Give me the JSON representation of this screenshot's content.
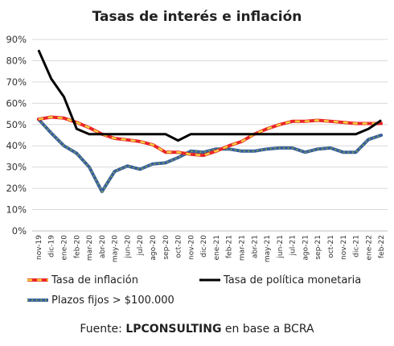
{
  "chart_data": {
    "type": "line",
    "title": "Tasas de interés e inflación",
    "categories": [
      "nov-19",
      "dic-19",
      "ene-20",
      "feb-20",
      "mar-20",
      "abr-20",
      "may-20",
      "jun-20",
      "jul-20",
      "ago-20",
      "sep-20",
      "oct-20",
      "nov-20",
      "dic-20",
      "ene-21",
      "feb-21",
      "mar-21",
      "abr-21",
      "may-21",
      "jun-21",
      "jul-21",
      "ago-21",
      "sep-21",
      "oct-21",
      "nov-21",
      "dic-21",
      "ene-22",
      "feb-22"
    ],
    "ylim": [
      0,
      90
    ],
    "yticks": [
      "0%",
      "10%",
      "20%",
      "30%",
      "40%",
      "50%",
      "60%",
      "70%",
      "80%",
      "90%"
    ],
    "grid": true,
    "legend_position": "bottom",
    "series": [
      {
        "name": "Tasa de inflación",
        "color": "#e8262a",
        "dash_color": "#f3d43a",
        "values": [
          52.5,
          53.5,
          53,
          51,
          48.5,
          45.5,
          43.5,
          42.8,
          42,
          40.5,
          37,
          37,
          36,
          35.5,
          37.5,
          40,
          42,
          45.5,
          48,
          50,
          51.5,
          51.5,
          52,
          51.5,
          51,
          50.5,
          50.5,
          50.5
        ]
      },
      {
        "name": "Tasa de política monetaria",
        "color": "#000000",
        "values": [
          85,
          71.5,
          63,
          48,
          45.5,
          45.5,
          45.5,
          45.5,
          45.5,
          45.5,
          45.5,
          42.5,
          45.5,
          45.5,
          45.5,
          45.5,
          45.5,
          45.5,
          45.5,
          45.5,
          45.5,
          45.5,
          45.5,
          45.5,
          45.5,
          45.5,
          48,
          52
        ]
      },
      {
        "name": "Plazos fijos > $100.000",
        "color": "#3b5f9a",
        "dash_color": "#7fb04a",
        "values": [
          52.5,
          46,
          40,
          36.5,
          30,
          18.5,
          28,
          30.5,
          29,
          31.5,
          32,
          34.5,
          37.5,
          37,
          38.5,
          38.5,
          37.5,
          37.5,
          38.5,
          39,
          39,
          37,
          38.5,
          39,
          37,
          37,
          43,
          45
        ]
      }
    ]
  },
  "footer": {
    "prefix": "Fuente: ",
    "brand": "LPCONSULTING",
    "suffix": " en base a BCRA"
  }
}
